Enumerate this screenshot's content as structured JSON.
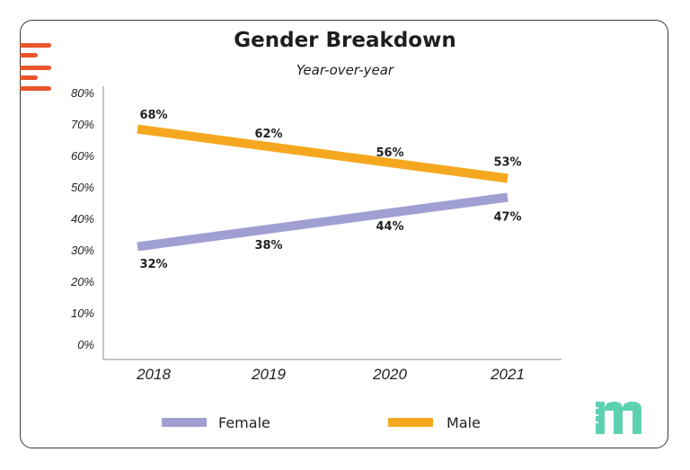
{
  "chart_data": {
    "type": "line",
    "title": "Gender Breakdown",
    "subtitle": "Year-over-year",
    "categories": [
      "2018",
      "2019",
      "2020",
      "2021"
    ],
    "series": [
      {
        "name": "Female",
        "values": [
          32,
          38,
          44,
          47
        ],
        "labels": [
          "32%",
          "38%",
          "44%",
          "47%"
        ],
        "color": "#a09fd2"
      },
      {
        "name": "Male",
        "values": [
          68,
          62,
          56,
          53
        ],
        "labels": [
          "68%",
          "62%",
          "56%",
          "53%"
        ],
        "color": "#f5a81f"
      }
    ],
    "ylim": [
      0,
      80
    ],
    "yticks": [
      "0%",
      "10%",
      "20%",
      "30%",
      "40%",
      "50%",
      "60%",
      "70%",
      "80%"
    ],
    "xlabel": "",
    "ylabel": "",
    "grid": false,
    "legend_position": "bottom"
  },
  "decor": {
    "menu_color": "#e8552a",
    "logo_icon": "m-logo-icon",
    "logo_color": "#5ed1b1"
  }
}
